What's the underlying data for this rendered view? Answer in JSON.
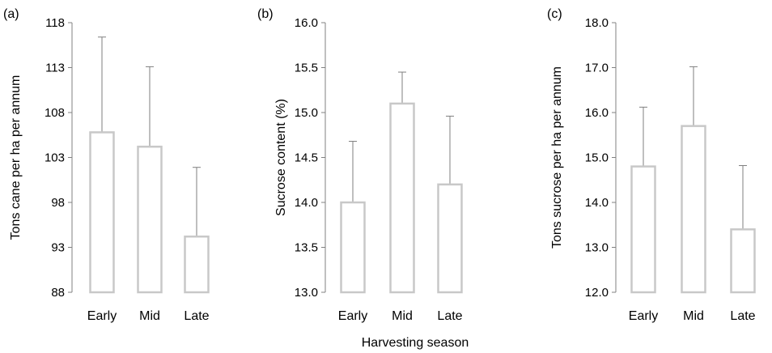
{
  "shared_xlabel": "Harvesting season",
  "chart_data": [
    {
      "type": "bar",
      "panel_label": "(a)",
      "categories": [
        "Early",
        "Mid",
        "Late"
      ],
      "values": [
        105.8,
        104.2,
        94.2
      ],
      "error_upper": [
        116.4,
        113.1,
        101.9
      ],
      "ylabel": "Tons cane per ha per annum",
      "ylim": [
        88,
        118
      ],
      "yticks": [
        "88",
        "93",
        "98",
        "103",
        "108",
        "113",
        "118"
      ],
      "grid": false,
      "bar_color": "#c8c8c8",
      "error_color": "#7f7f7f"
    },
    {
      "type": "bar",
      "panel_label": "(b)",
      "categories": [
        "Early",
        "Mid",
        "Late"
      ],
      "values": [
        14.0,
        15.1,
        14.2
      ],
      "error_upper": [
        14.68,
        15.45,
        14.96
      ],
      "ylabel": "Sucrose content (%)",
      "ylim": [
        13.0,
        16.0
      ],
      "yticks": [
        "13.0",
        "13.5",
        "14.0",
        "14.5",
        "15.0",
        "15.5",
        "16.0"
      ],
      "grid": false,
      "bar_color": "#c8c8c8",
      "error_color": "#7f7f7f"
    },
    {
      "type": "bar",
      "panel_label": "(c)",
      "categories": [
        "Early",
        "Mid",
        "Late"
      ],
      "values": [
        14.8,
        15.7,
        13.4
      ],
      "error_upper": [
        16.12,
        17.02,
        14.82
      ],
      "ylabel": "Tons sucrose per ha per annum",
      "ylim": [
        12.0,
        18.0
      ],
      "yticks": [
        "12.0",
        "13.0",
        "14.0",
        "15.0",
        "16.0",
        "17.0",
        "18.0"
      ],
      "grid": false,
      "bar_color": "#c8c8c8",
      "error_color": "#7f7f7f"
    }
  ]
}
